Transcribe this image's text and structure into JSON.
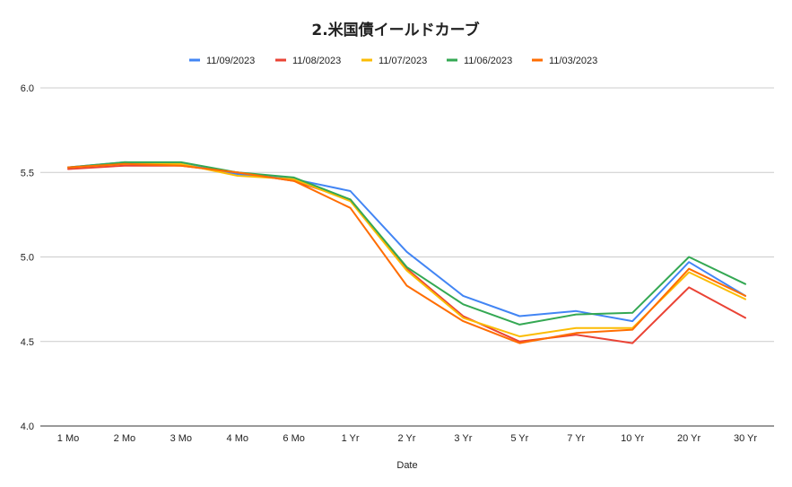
{
  "chart_data": {
    "type": "line",
    "title": "2.米国債イールドカーブ",
    "xlabel": "Date",
    "ylabel": "",
    "ylim": [
      4.0,
      6.0
    ],
    "yticks": [
      "4.0",
      "4.5",
      "5.0",
      "5.5",
      "6.0"
    ],
    "ytick_values": [
      4.0,
      4.5,
      5.0,
      5.5,
      6.0
    ],
    "grid": true,
    "legend_position": "top",
    "categories": [
      "1 Mo",
      "2 Mo",
      "3 Mo",
      "4 Mo",
      "6 Mo",
      "1 Yr",
      "2 Yr",
      "3 Yr",
      "5 Yr",
      "7 Yr",
      "10 Yr",
      "20 Yr",
      "30 Yr"
    ],
    "series": [
      {
        "name": "11/09/2023",
        "color": "#4285f4",
        "values": [
          5.53,
          5.56,
          5.55,
          5.49,
          5.46,
          5.39,
          5.03,
          4.77,
          4.65,
          4.68,
          4.62,
          4.97,
          4.77
        ]
      },
      {
        "name": "11/08/2023",
        "color": "#ea4335",
        "values": [
          5.52,
          5.54,
          5.54,
          5.5,
          5.45,
          5.34,
          4.93,
          4.65,
          4.5,
          4.54,
          4.49,
          4.82,
          4.64
        ]
      },
      {
        "name": "11/07/2023",
        "color": "#fbbc04",
        "values": [
          5.53,
          5.55,
          5.55,
          5.48,
          5.46,
          5.33,
          4.92,
          4.64,
          4.53,
          4.58,
          4.58,
          4.91,
          4.75
        ]
      },
      {
        "name": "11/06/2023",
        "color": "#34a853",
        "values": [
          5.53,
          5.56,
          5.56,
          5.5,
          5.47,
          5.34,
          4.94,
          4.72,
          4.6,
          4.66,
          4.67,
          5.0,
          4.84
        ]
      },
      {
        "name": "11/03/2023",
        "color": "#ff6d01",
        "values": [
          5.53,
          5.55,
          5.54,
          5.5,
          5.45,
          5.29,
          4.83,
          4.62,
          4.49,
          4.55,
          4.57,
          4.93,
          4.77
        ]
      }
    ]
  }
}
